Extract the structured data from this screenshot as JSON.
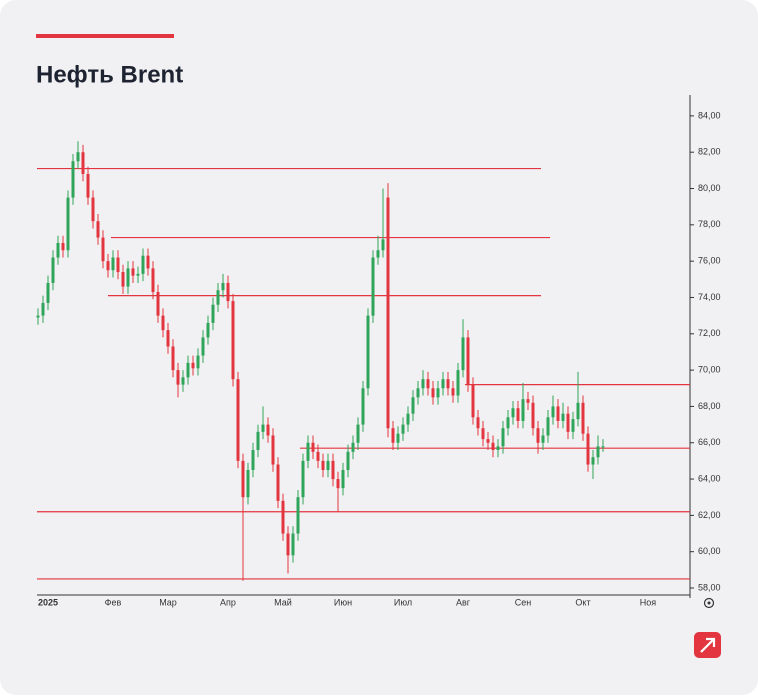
{
  "chart_data": {
    "type": "candlestick",
    "title": "Нефть Brent",
    "categories": [
      null,
      null,
      "2025",
      null,
      null,
      null,
      null,
      null,
      null,
      null,
      null,
      null,
      null,
      null,
      null,
      "Фев",
      null,
      null,
      null,
      null,
      null,
      null,
      null,
      null,
      null,
      null,
      "Мар",
      null,
      null,
      null,
      null,
      null,
      null,
      null,
      null,
      null,
      null,
      null,
      "Апр",
      null,
      null,
      null,
      null,
      null,
      null,
      null,
      null,
      null,
      null,
      "Май",
      null,
      null,
      null,
      null,
      null,
      null,
      null,
      null,
      null,
      null,
      null,
      "Июн",
      null,
      null,
      null,
      null,
      null,
      null,
      null,
      null,
      null,
      null,
      null,
      "Июл",
      null,
      null,
      null,
      null,
      null,
      null,
      null,
      null,
      null,
      null,
      null,
      "Авг",
      null,
      null,
      null,
      null,
      null,
      null,
      null,
      null,
      null,
      null,
      null,
      "Сен",
      null,
      null,
      null,
      null,
      null,
      null,
      null,
      null,
      null,
      null,
      null,
      "Окт",
      null,
      null,
      null,
      null,
      null,
      null,
      null,
      null,
      null,
      null,
      null,
      null,
      "Ноя"
    ],
    "open": [
      72.9,
      73.0,
      73.7,
      74.8,
      76.2,
      77.0,
      76.6,
      79.5,
      81.5,
      82.0,
      80.8,
      79.5,
      78.2,
      77.3,
      76.0,
      75.5,
      76.2,
      75.4,
      74.6,
      75.6,
      75.2,
      75.3,
      76.3,
      75.6,
      74.3,
      73.0,
      72.2,
      71.3,
      70.0,
      69.2,
      69.6,
      70.4,
      70.1,
      70.8,
      71.8,
      72.6,
      73.6,
      74.4,
      74.8,
      73.8,
      69.5,
      65.0,
      63.0,
      64.5,
      65.6,
      66.6,
      67.0,
      66.4,
      64.8,
      62.8,
      61.0,
      59.8,
      61.0,
      63.0,
      65.0,
      66.0,
      65.5,
      65.0,
      64.5,
      65.0,
      64.0,
      63.5,
      64.5,
      65.5,
      66.0,
      67.0,
      69.0,
      73.0,
      76.2,
      76.6,
      79.5,
      66.8,
      66.0,
      66.5,
      67.0,
      67.6,
      68.5,
      69.0,
      69.5,
      69.0,
      68.5,
      69.0,
      69.5,
      69.0,
      68.6,
      70.0,
      71.8,
      69.2,
      67.4,
      66.8,
      66.2,
      66.0,
      65.6,
      65.8,
      66.8,
      67.4,
      67.9,
      67.2,
      68.4,
      68.2,
      66.8,
      66.0,
      66.4,
      67.4,
      68.0,
      67.2,
      67.6,
      66.6,
      67.3,
      68.2,
      66.5,
      64.8,
      65.2,
      65.8,
      null,
      null,
      null,
      null,
      null,
      null,
      null,
      null,
      null
    ],
    "high": [
      73.4,
      74.1,
      75.2,
      76.6,
      77.4,
      77.4,
      79.9,
      81.9,
      82.6,
      82.4,
      81.2,
      79.9,
      78.6,
      77.7,
      76.4,
      76.6,
      76.6,
      75.8,
      76.0,
      76.0,
      75.7,
      76.7,
      76.7,
      76.0,
      74.7,
      73.4,
      72.6,
      71.7,
      70.4,
      70.0,
      70.8,
      70.8,
      71.2,
      72.2,
      73.0,
      74.0,
      74.8,
      75.3,
      75.2,
      74.2,
      69.9,
      65.4,
      64.9,
      66.0,
      67.0,
      68.0,
      67.4,
      66.8,
      65.2,
      63.2,
      61.4,
      61.4,
      63.4,
      65.4,
      66.4,
      66.4,
      65.9,
      65.4,
      65.4,
      65.4,
      64.4,
      64.9,
      65.9,
      66.4,
      67.4,
      69.4,
      73.4,
      76.6,
      77.4,
      80.0,
      80.3,
      67.2,
      66.9,
      67.4,
      68.0,
      68.9,
      69.4,
      70.0,
      69.9,
      69.4,
      69.4,
      69.9,
      69.9,
      69.4,
      70.4,
      72.8,
      72.2,
      69.6,
      67.8,
      67.2,
      66.6,
      66.4,
      66.2,
      67.2,
      67.8,
      68.3,
      68.3,
      69.3,
      68.8,
      68.6,
      67.2,
      66.8,
      67.8,
      68.6,
      68.4,
      68.2,
      68.0,
      67.7,
      69.9,
      68.6,
      66.9,
      65.6,
      66.4,
      66.2,
      null,
      null,
      null,
      null,
      null,
      null,
      null,
      null,
      null
    ],
    "low": [
      72.5,
      72.6,
      73.3,
      74.4,
      75.8,
      76.2,
      76.2,
      79.1,
      81.1,
      80.4,
      79.1,
      77.8,
      76.9,
      75.6,
      75.1,
      75.1,
      75.0,
      74.2,
      74.2,
      74.8,
      74.8,
      74.9,
      75.2,
      73.9,
      72.6,
      71.8,
      70.9,
      69.6,
      68.5,
      68.8,
      69.2,
      69.7,
      69.7,
      70.4,
      71.4,
      72.2,
      73.2,
      74.0,
      73.4,
      69.1,
      64.6,
      58.4,
      62.6,
      64.1,
      65.2,
      66.2,
      66.0,
      64.4,
      62.4,
      60.6,
      58.8,
      59.4,
      60.6,
      62.6,
      64.6,
      65.1,
      64.6,
      64.1,
      64.1,
      63.6,
      62.2,
      63.1,
      64.1,
      65.1,
      65.6,
      66.6,
      68.6,
      72.6,
      75.8,
      76.2,
      66.3,
      65.6,
      65.6,
      66.1,
      66.6,
      67.2,
      68.1,
      68.6,
      68.6,
      68.1,
      68.1,
      68.6,
      68.6,
      68.2,
      68.2,
      69.6,
      68.8,
      67.0,
      66.4,
      65.8,
      65.6,
      65.2,
      65.2,
      65.4,
      66.4,
      67.0,
      66.8,
      66.8,
      67.8,
      66.4,
      65.4,
      65.6,
      66.0,
      67.0,
      66.8,
      66.8,
      66.2,
      66.2,
      66.9,
      66.1,
      64.4,
      64.0,
      64.8,
      65.5,
      null,
      null,
      null,
      null,
      null,
      null,
      null,
      null,
      null
    ],
    "close": [
      73.0,
      73.7,
      74.8,
      76.2,
      77.0,
      76.6,
      79.5,
      81.5,
      82.0,
      80.8,
      79.5,
      78.2,
      77.3,
      76.0,
      75.5,
      76.2,
      75.4,
      74.6,
      75.6,
      75.2,
      75.3,
      76.3,
      75.6,
      74.3,
      73.0,
      72.2,
      71.3,
      70.0,
      69.2,
      69.6,
      70.4,
      70.1,
      70.8,
      71.8,
      72.6,
      73.6,
      74.4,
      74.8,
      73.8,
      69.5,
      65.0,
      63.0,
      64.5,
      65.6,
      66.6,
      67.0,
      66.4,
      64.8,
      62.8,
      61.0,
      59.8,
      61.0,
      63.0,
      65.0,
      66.0,
      65.5,
      65.0,
      64.5,
      65.0,
      64.0,
      63.5,
      64.5,
      65.5,
      66.0,
      67.0,
      69.0,
      73.0,
      76.2,
      76.6,
      77.2,
      66.8,
      66.0,
      66.5,
      67.0,
      67.6,
      68.5,
      69.0,
      69.5,
      69.0,
      68.5,
      69.0,
      69.5,
      69.0,
      68.6,
      70.0,
      71.8,
      69.2,
      67.4,
      66.8,
      66.2,
      66.0,
      65.6,
      65.8,
      66.8,
      67.4,
      67.9,
      67.2,
      68.4,
      68.2,
      66.8,
      66.0,
      66.4,
      67.4,
      68.0,
      67.2,
      67.6,
      66.6,
      67.3,
      68.2,
      66.5,
      64.8,
      65.2,
      65.8,
      65.8,
      null,
      null,
      null,
      null,
      null,
      null,
      null,
      null,
      null
    ],
    "up_color": "#2ea55a",
    "down_color": "#e2353f",
    "ylim": [
      57.45,
      85.15
    ],
    "yticks": [
      {
        "value": 58,
        "label": "58,00"
      },
      {
        "value": 60,
        "label": "60,00"
      },
      {
        "value": 62,
        "label": "62,00"
      },
      {
        "value": 64,
        "label": "64,00"
      },
      {
        "value": 66,
        "label": "66,00"
      },
      {
        "value": 68,
        "label": "68,00"
      },
      {
        "value": 70,
        "label": "70,00"
      },
      {
        "value": 72,
        "label": "72,00"
      },
      {
        "value": 74,
        "label": "74,00"
      },
      {
        "value": 76,
        "label": "76,00"
      },
      {
        "value": 78,
        "label": "78,00"
      },
      {
        "value": 80,
        "label": "80,00"
      },
      {
        "value": 82,
        "label": "82,00"
      },
      {
        "value": 84,
        "label": "84,00"
      }
    ],
    "hline_color": "#e2353f",
    "hlines": [
      {
        "value": 81.1,
        "start": -0.2,
        "end": 100.6
      },
      {
        "value": 77.3,
        "start": 14.6,
        "end": 102.4
      },
      {
        "value": 74.1,
        "start": 14,
        "end": 100.6
      },
      {
        "value": 69.2,
        "start": 85.4,
        "end": 130.4
      },
      {
        "value": 65.7,
        "start": 52.4,
        "end": 130.4
      },
      {
        "value": 62.2,
        "start": -0.2,
        "end": 130.4
      },
      {
        "value": 58.5,
        "start": -0.2,
        "end": 130.4
      }
    ]
  }
}
